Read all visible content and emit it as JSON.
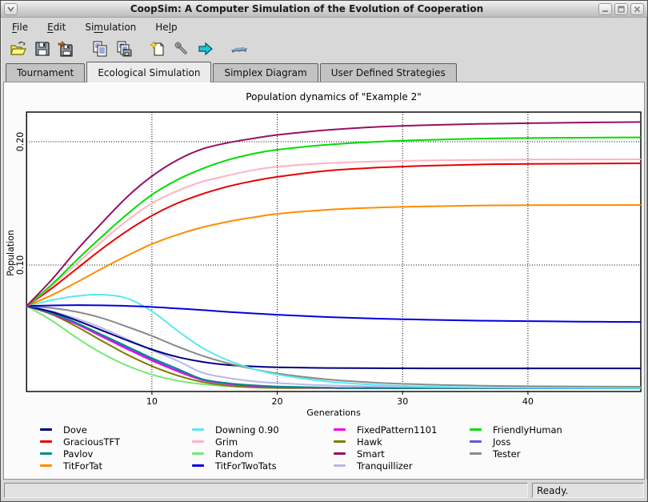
{
  "window": {
    "title": "CoopSim: A Computer Simulation of the Evolution of Cooperation",
    "buttons": [
      "window-menu",
      "minimize",
      "maximize",
      "close"
    ]
  },
  "menu_bar": {
    "items": [
      {
        "label": "File",
        "accel_index": 0
      },
      {
        "label": "Edit",
        "accel_index": 0
      },
      {
        "label": "Simulation",
        "accel_index": 2
      },
      {
        "label": "Help",
        "accel_index": 2
      }
    ]
  },
  "toolbar": {
    "buttons": [
      {
        "name": "open",
        "icon": "folder-open-icon"
      },
      {
        "name": "save",
        "icon": "save-icon"
      },
      {
        "name": "save-as",
        "icon": "save-as-icon"
      },
      {
        "name": "copy",
        "icon": "copy-icon"
      },
      {
        "name": "copy-to-disk",
        "icon": "copy-save-icon"
      },
      {
        "name": "new-simulation",
        "icon": "new-document-icon"
      },
      {
        "name": "setup",
        "icon": "wrench-icon"
      },
      {
        "name": "run",
        "icon": "run-arrow-icon"
      },
      {
        "name": "documentation",
        "icon": "book-icon"
      }
    ]
  },
  "tabs": [
    {
      "label": "Tournament",
      "active": false
    },
    {
      "label": "Ecological Simulation",
      "active": true
    },
    {
      "label": "Simplex Diagram",
      "active": false
    },
    {
      "label": "User Defined Strategies",
      "active": false
    }
  ],
  "chart_data": {
    "type": "line",
    "title": "Population dynamics of \"Example 2\"",
    "xlabel": "Generations",
    "ylabel": "Population",
    "xlim": [
      0,
      49
    ],
    "ylim": [
      0,
      0.224
    ],
    "grid": "dotted",
    "xticks": [
      {
        "value": 10,
        "label": "10"
      },
      {
        "value": 20,
        "label": "20"
      },
      {
        "value": 30,
        "label": "30"
      },
      {
        "value": 40,
        "label": "40"
      }
    ],
    "yticks": [
      {
        "value": 0.1,
        "label": "0.10"
      },
      {
        "value": 0.2,
        "label": "0.20"
      }
    ],
    "initial_population_each": 0.0667,
    "series": [
      {
        "name": "Random",
        "color": "#72e872",
        "points": [
          [
            0,
            0.0667
          ],
          [
            2,
            0.055
          ],
          [
            4,
            0.041
          ],
          [
            6,
            0.0285
          ],
          [
            8,
            0.0185
          ],
          [
            10,
            0.0112
          ],
          [
            12,
            0.0063
          ],
          [
            14,
            0.0034
          ],
          [
            16,
            0.0018
          ],
          [
            18,
            0.001
          ],
          [
            20,
            0.0006
          ],
          [
            24,
            0.0002
          ],
          [
            28,
            0.0001
          ],
          [
            49,
            0.0001
          ]
        ]
      },
      {
        "name": "Hawk",
        "color": "#7d7d00",
        "points": [
          [
            0,
            0.0667
          ],
          [
            2,
            0.06
          ],
          [
            4,
            0.05
          ],
          [
            6,
            0.0385
          ],
          [
            8,
            0.0275
          ],
          [
            10,
            0.018
          ],
          [
            12,
            0.0105
          ],
          [
            14,
            0.0052
          ],
          [
            16,
            0.0022
          ],
          [
            18,
            0.0008
          ],
          [
            20,
            0.0003
          ],
          [
            24,
            0.0001
          ],
          [
            49,
            0.0001
          ]
        ]
      },
      {
        "name": "Joss",
        "color": "#5a5ad8",
        "points": [
          [
            0,
            0.0667
          ],
          [
            2,
            0.0608
          ],
          [
            4,
            0.0525
          ],
          [
            6,
            0.0428
          ],
          [
            8,
            0.0328
          ],
          [
            10,
            0.0232
          ],
          [
            12,
            0.0146
          ],
          [
            14,
            0.0072
          ],
          [
            16,
            0.0038
          ],
          [
            18,
            0.0021
          ],
          [
            20,
            0.0012
          ],
          [
            24,
            0.0004
          ],
          [
            28,
            0.0001
          ],
          [
            49,
            0.0001
          ]
        ]
      },
      {
        "name": "FixedPattern1101",
        "color": "#ee00ee",
        "points": [
          [
            0,
            0.0667
          ],
          [
            2,
            0.0605
          ],
          [
            4,
            0.052
          ],
          [
            6,
            0.042
          ],
          [
            8,
            0.032
          ],
          [
            10,
            0.0225
          ],
          [
            12,
            0.014
          ],
          [
            14,
            0.0068
          ],
          [
            16,
            0.0036
          ],
          [
            18,
            0.002
          ],
          [
            20,
            0.0011
          ],
          [
            24,
            0.0004
          ],
          [
            28,
            0.0001
          ],
          [
            49,
            0.0001
          ]
        ]
      },
      {
        "name": "Pavlov",
        "color": "#008b8b",
        "points": [
          [
            0,
            0.0667
          ],
          [
            2,
            0.061
          ],
          [
            4,
            0.053
          ],
          [
            6,
            0.0435
          ],
          [
            8,
            0.034
          ],
          [
            10,
            0.0245
          ],
          [
            12,
            0.016
          ],
          [
            14,
            0.0075
          ],
          [
            16,
            0.0042
          ],
          [
            18,
            0.0025
          ],
          [
            20,
            0.0015
          ],
          [
            24,
            0.0006
          ],
          [
            28,
            0.0002
          ],
          [
            49,
            0.0001
          ]
        ]
      },
      {
        "name": "Tranquillizer",
        "color": "#b8b8ec",
        "points": [
          [
            0,
            0.0667
          ],
          [
            2,
            0.0625
          ],
          [
            4,
            0.0565
          ],
          [
            6,
            0.049
          ],
          [
            8,
            0.04
          ],
          [
            10,
            0.031
          ],
          [
            12,
            0.0225
          ],
          [
            14,
            0.0128
          ],
          [
            16,
            0.0085
          ],
          [
            18,
            0.0058
          ],
          [
            20,
            0.0042
          ],
          [
            24,
            0.0024
          ],
          [
            28,
            0.0015
          ],
          [
            32,
            0.001
          ],
          [
            36,
            0.0007
          ],
          [
            40,
            0.0006
          ],
          [
            49,
            0.0005
          ]
        ]
      },
      {
        "name": "Dove",
        "color": "#000082",
        "points": [
          [
            0,
            0.0667
          ],
          [
            2,
            0.062
          ],
          [
            4,
            0.055
          ],
          [
            6,
            0.047
          ],
          [
            8,
            0.039
          ],
          [
            10,
            0.0315
          ],
          [
            12,
            0.0255
          ],
          [
            14,
            0.0215
          ],
          [
            16,
            0.019
          ],
          [
            18,
            0.0178
          ],
          [
            20,
            0.0171
          ],
          [
            24,
            0.0165
          ],
          [
            28,
            0.0163
          ],
          [
            32,
            0.0162
          ],
          [
            49,
            0.0162
          ]
        ]
      },
      {
        "name": "Tester",
        "color": "#8a8a8a",
        "points": [
          [
            0,
            0.0667
          ],
          [
            2,
            0.0652
          ],
          [
            4,
            0.062
          ],
          [
            6,
            0.057
          ],
          [
            8,
            0.05
          ],
          [
            10,
            0.0425
          ],
          [
            12,
            0.034
          ],
          [
            14,
            0.0265
          ],
          [
            16,
            0.0205
          ],
          [
            18,
            0.0158
          ],
          [
            20,
            0.012
          ],
          [
            24,
            0.0072
          ],
          [
            28,
            0.0045
          ],
          [
            32,
            0.003
          ],
          [
            36,
            0.0022
          ],
          [
            40,
            0.0017
          ],
          [
            49,
            0.0013
          ]
        ]
      },
      {
        "name": "Downing 0.90",
        "color": "#58e8f0",
        "points": [
          [
            0,
            0.0667
          ],
          [
            2,
            0.0715
          ],
          [
            4,
            0.0748
          ],
          [
            6,
            0.076
          ],
          [
            8,
            0.073
          ],
          [
            10,
            0.0625
          ],
          [
            12,
            0.047
          ],
          [
            14,
            0.033
          ],
          [
            16,
            0.023
          ],
          [
            18,
            0.016
          ],
          [
            20,
            0.0112
          ],
          [
            24,
            0.0055
          ],
          [
            28,
            0.0028
          ],
          [
            32,
            0.0014
          ],
          [
            36,
            0.0007
          ],
          [
            40,
            0.0004
          ],
          [
            49,
            0.0002
          ]
        ]
      },
      {
        "name": "TitForTwoTats",
        "color": "#0000dd",
        "points": [
          [
            0,
            0.0667
          ],
          [
            2,
            0.0672
          ],
          [
            4,
            0.0675
          ],
          [
            6,
            0.0673
          ],
          [
            8,
            0.0668
          ],
          [
            10,
            0.066
          ],
          [
            12,
            0.0648
          ],
          [
            14,
            0.0635
          ],
          [
            16,
            0.062
          ],
          [
            18,
            0.0608
          ],
          [
            20,
            0.0597
          ],
          [
            24,
            0.0578
          ],
          [
            28,
            0.0565
          ],
          [
            32,
            0.0556
          ],
          [
            36,
            0.0549
          ],
          [
            40,
            0.0545
          ],
          [
            44,
            0.0541
          ],
          [
            49,
            0.0538
          ]
        ]
      },
      {
        "name": "TitForTat",
        "color": "#ff8c00",
        "points": [
          [
            0,
            0.0667
          ],
          [
            2,
            0.0755
          ],
          [
            4,
            0.086
          ],
          [
            6,
            0.097
          ],
          [
            8,
            0.1075
          ],
          [
            10,
            0.117
          ],
          [
            12,
            0.1245
          ],
          [
            14,
            0.1305
          ],
          [
            16,
            0.135
          ],
          [
            18,
            0.1385
          ],
          [
            20,
            0.1415
          ],
          [
            24,
            0.1448
          ],
          [
            28,
            0.1466
          ],
          [
            32,
            0.1476
          ],
          [
            36,
            0.1482
          ],
          [
            40,
            0.1485
          ],
          [
            49,
            0.1487
          ]
        ]
      },
      {
        "name": "GraciousTFT",
        "color": "#e60000",
        "points": [
          [
            0,
            0.0667
          ],
          [
            2,
            0.081
          ],
          [
            4,
            0.097
          ],
          [
            6,
            0.113
          ],
          [
            8,
            0.1275
          ],
          [
            10,
            0.14
          ],
          [
            12,
            0.15
          ],
          [
            14,
            0.1575
          ],
          [
            16,
            0.1635
          ],
          [
            18,
            0.168
          ],
          [
            20,
            0.1715
          ],
          [
            24,
            0.1765
          ],
          [
            28,
            0.179
          ],
          [
            32,
            0.1805
          ],
          [
            36,
            0.1815
          ],
          [
            40,
            0.182
          ],
          [
            49,
            0.1825
          ]
        ]
      },
      {
        "name": "Grim",
        "color": "#ffb3c1",
        "points": [
          [
            0,
            0.0667
          ],
          [
            2,
            0.083
          ],
          [
            4,
            0.101
          ],
          [
            6,
            0.119
          ],
          [
            8,
            0.136
          ],
          [
            10,
            0.15
          ],
          [
            12,
            0.16
          ],
          [
            14,
            0.1675
          ],
          [
            16,
            0.1725
          ],
          [
            18,
            0.1768
          ],
          [
            20,
            0.1797
          ],
          [
            24,
            0.1826
          ],
          [
            28,
            0.184
          ],
          [
            32,
            0.1848
          ],
          [
            36,
            0.1852
          ],
          [
            40,
            0.1855
          ],
          [
            49,
            0.1857
          ]
        ]
      },
      {
        "name": "FriendlyHuman",
        "color": "#00dd00",
        "points": [
          [
            0,
            0.0667
          ],
          [
            2,
            0.084
          ],
          [
            4,
            0.104
          ],
          [
            6,
            0.123
          ],
          [
            8,
            0.141
          ],
          [
            10,
            0.157
          ],
          [
            12,
            0.169
          ],
          [
            14,
            0.178
          ],
          [
            16,
            0.185
          ],
          [
            18,
            0.19
          ],
          [
            20,
            0.1935
          ],
          [
            24,
            0.1975
          ],
          [
            28,
            0.2
          ],
          [
            32,
            0.2015
          ],
          [
            36,
            0.2025
          ],
          [
            40,
            0.203
          ],
          [
            49,
            0.2035
          ]
        ]
      },
      {
        "name": "Smart",
        "color": "#961060",
        "points": [
          [
            0,
            0.0667
          ],
          [
            2,
            0.088
          ],
          [
            4,
            0.112
          ],
          [
            6,
            0.134
          ],
          [
            8,
            0.155
          ],
          [
            10,
            0.172
          ],
          [
            12,
            0.185
          ],
          [
            14,
            0.194
          ],
          [
            16,
            0.199
          ],
          [
            18,
            0.2025
          ],
          [
            20,
            0.2055
          ],
          [
            24,
            0.2095
          ],
          [
            28,
            0.212
          ],
          [
            32,
            0.2135
          ],
          [
            36,
            0.2145
          ],
          [
            40,
            0.215
          ],
          [
            44,
            0.2155
          ],
          [
            49,
            0.216
          ]
        ]
      }
    ]
  },
  "legend": {
    "columns": [
      [
        "Dove",
        "GraciousTFT",
        "Pavlov",
        "TitForTat"
      ],
      [
        "Downing 0.90",
        "Grim",
        "Random",
        "TitForTwoTats"
      ],
      [
        "FixedPattern1101",
        "Hawk",
        "Smart",
        "Tranquillizer"
      ],
      [
        "FriendlyHuman",
        "Joss",
        "Tester"
      ]
    ]
  },
  "status_bar": {
    "left": "",
    "right": "Ready."
  }
}
